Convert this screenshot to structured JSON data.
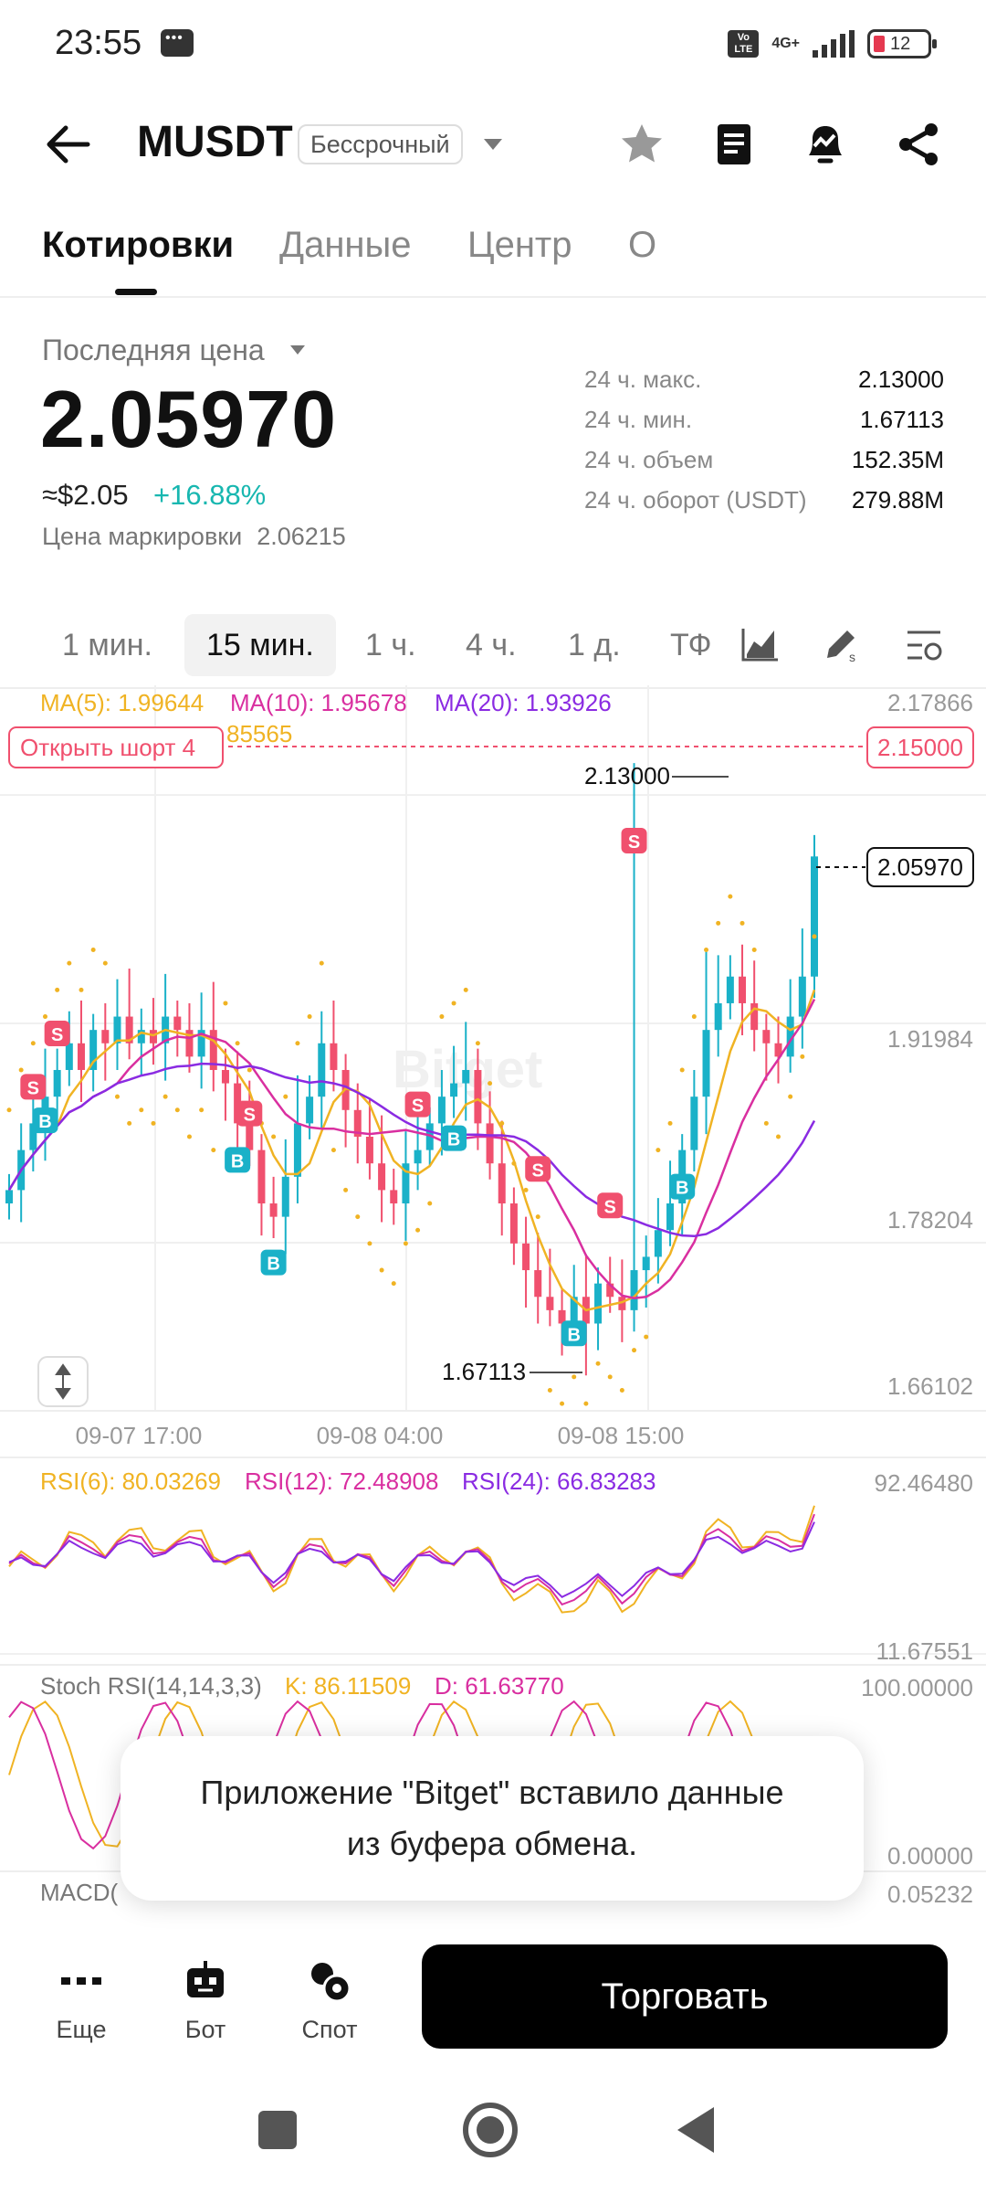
{
  "status_bar": {
    "time": "23:55",
    "network": "4G+",
    "volte": "Vo LTE",
    "battery": "12",
    "icons": [
      "message-icon",
      "signal-icon",
      "battery-icon"
    ]
  },
  "header": {
    "symbol": "MUSDT",
    "contract_type": "Бессрочный",
    "icons": [
      "back-arrow-icon",
      "dropdown-caret-icon",
      "star-icon",
      "document-icon",
      "price-alert-icon",
      "share-icon"
    ]
  },
  "tabs": [
    {
      "label": "Котировки",
      "active": true
    },
    {
      "label": "Данные",
      "active": false
    },
    {
      "label": "Центр",
      "active": false
    },
    {
      "label": "О",
      "active": false
    }
  ],
  "price": {
    "label": "Последняя цена",
    "last": "2.05970",
    "usd": "≈$2.05",
    "change": "+16.88%",
    "mark_label": "Цена маркировки",
    "mark_value": "2.06215",
    "change_color": "#18b7b0"
  },
  "stats": [
    {
      "label": "24 ч. макс.",
      "value": "2.13000"
    },
    {
      "label": "24 ч. мин.",
      "value": "1.67113"
    },
    {
      "label": "24 ч. объем",
      "value": "152.35M"
    },
    {
      "label": "24 ч. оборот (USDT)",
      "value": "279.88M"
    }
  ],
  "intervals": {
    "items": [
      "1 мин.",
      "15 мин.",
      "1 ч.",
      "4 ч.",
      "1 д.",
      "ТФ"
    ],
    "active": "15 мин.",
    "icons": [
      "chart-type-icon",
      "drawing-tools-icon",
      "indicator-settings-icon"
    ]
  },
  "chart_data": [
    {
      "type": "candlestick",
      "ma_labels": [
        "MA(5): 1.99644",
        "MA(10): 1.95678",
        "MA(20): 1.93926"
      ],
      "ma_colors": [
        "#f0b323",
        "#d92fa0",
        "#8a2be2"
      ],
      "y_ticks": [
        "2.17866",
        "1.91984",
        "1.78204",
        "1.66102"
      ],
      "x_ticks": [
        "09-07 17:00",
        "09-08 04:00",
        "09-08 15:00"
      ],
      "high_label": "2.13000",
      "low_label": "1.67113",
      "last_price_tag": "2.05970",
      "order_line_price": "2.15000",
      "order_line_label": "Открыть шорт 4",
      "partial_label": "85565",
      "watermark": "Bitget",
      "closes": [
        1.81,
        1.84,
        1.86,
        1.88,
        1.9,
        1.92,
        1.9,
        1.93,
        1.92,
        1.94,
        1.92,
        1.93,
        1.92,
        1.94,
        1.93,
        1.91,
        1.93,
        1.9,
        1.89,
        1.86,
        1.84,
        1.8,
        1.79,
        1.82,
        1.86,
        1.88,
        1.92,
        1.9,
        1.87,
        1.85,
        1.83,
        1.81,
        1.8,
        1.83,
        1.84,
        1.86,
        1.88,
        1.89,
        1.9,
        1.86,
        1.83,
        1.8,
        1.77,
        1.75,
        1.73,
        1.72,
        1.71,
        1.73,
        1.71,
        1.74,
        1.73,
        1.72,
        1.75,
        1.76,
        1.78,
        1.8,
        1.84,
        1.88,
        1.93,
        1.95,
        1.97,
        1.95,
        1.93,
        1.92,
        1.91,
        1.94,
        1.97,
        2.06
      ],
      "highs_max": 2.13,
      "lows_min": 1.67113
    },
    {
      "type": "line",
      "name": "RSI",
      "labels": [
        "RSI(6): 80.03269",
        "RSI(12): 72.48908",
        "RSI(24): 66.83283"
      ],
      "y_ticks": [
        "92.46480",
        "11.67551"
      ]
    },
    {
      "type": "line",
      "name": "Stoch RSI",
      "labels": [
        "Stoch RSI(14,14,3,3)",
        "K: 86.11509",
        "D: 61.63770"
      ],
      "y_ticks": [
        "100.00000",
        "0.00000"
      ]
    },
    {
      "type": "bar",
      "name": "MACD",
      "labels": [
        "MACD("
      ],
      "y_ticks": [
        "0.05232"
      ]
    }
  ],
  "toast": {
    "line1": "Приложение \"Bitget\" вставило данные",
    "line2": "из буфера обмена."
  },
  "bottom_bar": {
    "items": [
      {
        "label": "Еще",
        "icon": "more-dots-icon"
      },
      {
        "label": "Бот",
        "icon": "bot-icon"
      },
      {
        "label": "Спот",
        "icon": "spot-icon"
      }
    ],
    "trade_label": "Торговать"
  },
  "colors": {
    "up": "#1ab1c8",
    "down": "#f0506e",
    "ma5": "#f0b323",
    "ma10": "#d92fa0",
    "ma20": "#8a2be2"
  }
}
